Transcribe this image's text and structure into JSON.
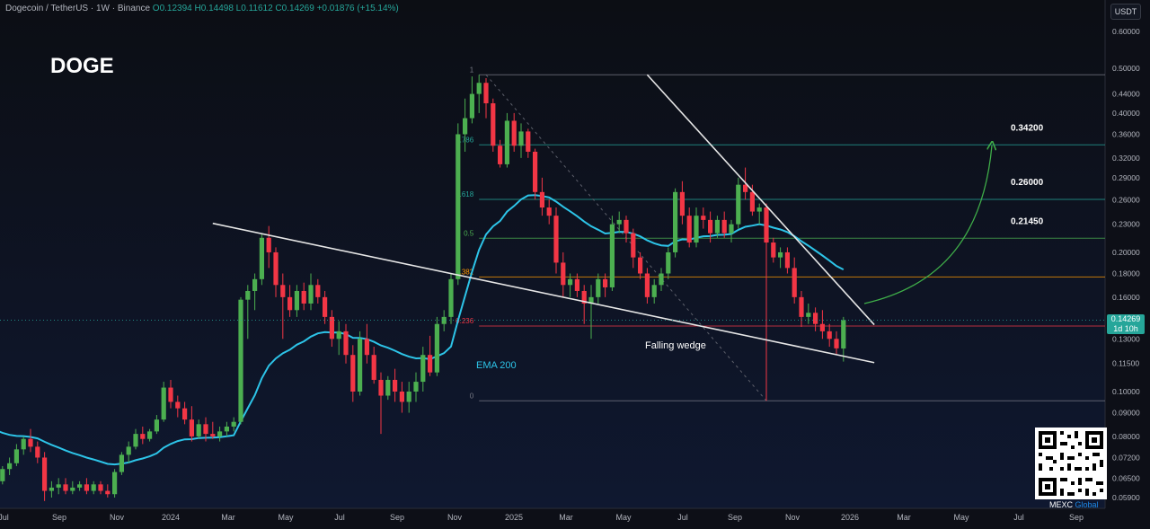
{
  "header": {
    "pair": "Dogecoin / TetherUS · 1W · Binance",
    "open": "O0.12394",
    "high": "H0.14498",
    "low": "L0.11612",
    "close": "C0.14269",
    "change": "+0.01876 (+15.14%)"
  },
  "ticker": "DOGE",
  "unit": "USDT",
  "current_price": {
    "value": "0.14269",
    "countdown": "1d 10h"
  },
  "brand": {
    "name": "MEXC",
    "suffix": "Global"
  },
  "chart_data": {
    "type": "candlestick",
    "y_axis": {
      "scale": "log",
      "ticks": [
        "0.60000",
        "0.50000",
        "0.44000",
        "0.40000",
        "0.36000",
        "0.32000",
        "0.29000",
        "0.26000",
        "0.23000",
        "0.20000",
        "0.18000",
        "0.16000",
        "0.14269",
        "0.13000",
        "0.11500",
        "0.10000",
        "0.09000",
        "0.08000",
        "0.07200",
        "0.06500",
        "0.05900"
      ]
    },
    "x_axis": {
      "ticks": [
        "Jul",
        "Sep",
        "Nov",
        "2024",
        "Mar",
        "May",
        "Jul",
        "Sep",
        "Nov",
        "2025",
        "Mar",
        "May",
        "Jul",
        "Sep",
        "Nov",
        "2026",
        "Mar",
        "May",
        "Jul",
        "Sep"
      ]
    },
    "fib_levels": [
      {
        "label": "1",
        "price": 0.484,
        "color": "#787b86"
      },
      {
        "label": "0.786",
        "price": 0.3415,
        "color": "#26a69a"
      },
      {
        "label": "0.618",
        "price": 0.2603,
        "color": "#26a69a"
      },
      {
        "label": "0.5",
        "price": 0.2145,
        "color": "#4caf50"
      },
      {
        "label": "0.382",
        "price": 0.1769,
        "color": "#ff9800"
      },
      {
        "label": "0.236",
        "price": 0.1386,
        "color": "#f23645"
      },
      {
        "label": "0",
        "price": 0.0955,
        "color": "#787b86"
      }
    ],
    "targets": [
      "0.34200",
      "0.26000",
      "0.21450"
    ],
    "annotations": {
      "wedge": "Falling wedge",
      "ema": "EMA 200"
    },
    "candles": [
      [
        0.063,
        0.066,
        0.061,
        0.064
      ],
      [
        0.064,
        0.069,
        0.063,
        0.068
      ],
      [
        0.068,
        0.072,
        0.066,
        0.07
      ],
      [
        0.07,
        0.077,
        0.069,
        0.075
      ],
      [
        0.075,
        0.08,
        0.073,
        0.079
      ],
      [
        0.079,
        0.083,
        0.074,
        0.076
      ],
      [
        0.076,
        0.078,
        0.07,
        0.072
      ],
      [
        0.072,
        0.074,
        0.058,
        0.061
      ],
      [
        0.061,
        0.064,
        0.059,
        0.062
      ],
      [
        0.062,
        0.065,
        0.06,
        0.063
      ],
      [
        0.063,
        0.065,
        0.06,
        0.061
      ],
      [
        0.061,
        0.064,
        0.06,
        0.062
      ],
      [
        0.062,
        0.064,
        0.061,
        0.063
      ],
      [
        0.063,
        0.065,
        0.06,
        0.061
      ],
      [
        0.061,
        0.064,
        0.06,
        0.063
      ],
      [
        0.063,
        0.064,
        0.06,
        0.061
      ],
      [
        0.061,
        0.063,
        0.059,
        0.06
      ],
      [
        0.06,
        0.068,
        0.059,
        0.067
      ],
      [
        0.067,
        0.074,
        0.066,
        0.073
      ],
      [
        0.073,
        0.078,
        0.07,
        0.076
      ],
      [
        0.076,
        0.083,
        0.075,
        0.081
      ],
      [
        0.081,
        0.084,
        0.077,
        0.079
      ],
      [
        0.079,
        0.083,
        0.078,
        0.082
      ],
      [
        0.082,
        0.089,
        0.081,
        0.087
      ],
      [
        0.087,
        0.105,
        0.086,
        0.102
      ],
      [
        0.102,
        0.106,
        0.092,
        0.095
      ],
      [
        0.095,
        0.098,
        0.088,
        0.092
      ],
      [
        0.092,
        0.095,
        0.085,
        0.087
      ],
      [
        0.087,
        0.093,
        0.078,
        0.08
      ],
      [
        0.08,
        0.087,
        0.079,
        0.085
      ],
      [
        0.085,
        0.088,
        0.078,
        0.081
      ],
      [
        0.081,
        0.086,
        0.079,
        0.08
      ],
      [
        0.08,
        0.084,
        0.078,
        0.082
      ],
      [
        0.082,
        0.086,
        0.08,
        0.084
      ],
      [
        0.084,
        0.088,
        0.082,
        0.086
      ],
      [
        0.086,
        0.16,
        0.085,
        0.158
      ],
      [
        0.158,
        0.17,
        0.13,
        0.165
      ],
      [
        0.165,
        0.18,
        0.15,
        0.175
      ],
      [
        0.175,
        0.22,
        0.17,
        0.215
      ],
      [
        0.215,
        0.228,
        0.185,
        0.2
      ],
      [
        0.2,
        0.205,
        0.16,
        0.17
      ],
      [
        0.17,
        0.18,
        0.13,
        0.16
      ],
      [
        0.16,
        0.17,
        0.145,
        0.15
      ],
      [
        0.15,
        0.17,
        0.145,
        0.165
      ],
      [
        0.165,
        0.172,
        0.15,
        0.155
      ],
      [
        0.155,
        0.18,
        0.15,
        0.17
      ],
      [
        0.17,
        0.175,
        0.155,
        0.16
      ],
      [
        0.16,
        0.165,
        0.14,
        0.145
      ],
      [
        0.145,
        0.15,
        0.125,
        0.13
      ],
      [
        0.13,
        0.142,
        0.12,
        0.135
      ],
      [
        0.135,
        0.14,
        0.115,
        0.12
      ],
      [
        0.12,
        0.126,
        0.095,
        0.1
      ],
      [
        0.1,
        0.135,
        0.098,
        0.13
      ],
      [
        0.13,
        0.14,
        0.115,
        0.12
      ],
      [
        0.12,
        0.125,
        0.104,
        0.106
      ],
      [
        0.106,
        0.11,
        0.081,
        0.098
      ],
      [
        0.098,
        0.108,
        0.096,
        0.106
      ],
      [
        0.106,
        0.112,
        0.095,
        0.1
      ],
      [
        0.1,
        0.105,
        0.09,
        0.095
      ],
      [
        0.095,
        0.105,
        0.09,
        0.1
      ],
      [
        0.1,
        0.11,
        0.095,
        0.105
      ],
      [
        0.105,
        0.125,
        0.1,
        0.12
      ],
      [
        0.12,
        0.132,
        0.108,
        0.11
      ],
      [
        0.11,
        0.145,
        0.108,
        0.14
      ],
      [
        0.14,
        0.15,
        0.135,
        0.145
      ],
      [
        0.145,
        0.18,
        0.14,
        0.175
      ],
      [
        0.175,
        0.38,
        0.17,
        0.36
      ],
      [
        0.36,
        0.43,
        0.33,
        0.39
      ],
      [
        0.39,
        0.48,
        0.38,
        0.44
      ],
      [
        0.44,
        0.484,
        0.4,
        0.465
      ],
      [
        0.465,
        0.476,
        0.39,
        0.42
      ],
      [
        0.42,
        0.43,
        0.33,
        0.34
      ],
      [
        0.34,
        0.35,
        0.305,
        0.31
      ],
      [
        0.31,
        0.4,
        0.305,
        0.385
      ],
      [
        0.385,
        0.4,
        0.33,
        0.34
      ],
      [
        0.34,
        0.38,
        0.32,
        0.365
      ],
      [
        0.365,
        0.37,
        0.32,
        0.33
      ],
      [
        0.33,
        0.335,
        0.26,
        0.27
      ],
      [
        0.27,
        0.29,
        0.24,
        0.25
      ],
      [
        0.25,
        0.26,
        0.23,
        0.24
      ],
      [
        0.24,
        0.25,
        0.18,
        0.19
      ],
      [
        0.19,
        0.2,
        0.16,
        0.17
      ],
      [
        0.17,
        0.18,
        0.16,
        0.175
      ],
      [
        0.175,
        0.18,
        0.16,
        0.165
      ],
      [
        0.165,
        0.17,
        0.14,
        0.155
      ],
      [
        0.155,
        0.17,
        0.13,
        0.16
      ],
      [
        0.16,
        0.18,
        0.155,
        0.175
      ],
      [
        0.175,
        0.18,
        0.16,
        0.168
      ],
      [
        0.168,
        0.24,
        0.165,
        0.23
      ],
      [
        0.23,
        0.245,
        0.22,
        0.235
      ],
      [
        0.235,
        0.24,
        0.21,
        0.22
      ],
      [
        0.22,
        0.225,
        0.185,
        0.195
      ],
      [
        0.195,
        0.2,
        0.175,
        0.18
      ],
      [
        0.18,
        0.185,
        0.155,
        0.16
      ],
      [
        0.16,
        0.175,
        0.155,
        0.17
      ],
      [
        0.17,
        0.185,
        0.165,
        0.18
      ],
      [
        0.18,
        0.205,
        0.175,
        0.2
      ],
      [
        0.2,
        0.275,
        0.195,
        0.27
      ],
      [
        0.27,
        0.285,
        0.23,
        0.24
      ],
      [
        0.24,
        0.25,
        0.205,
        0.21
      ],
      [
        0.21,
        0.25,
        0.205,
        0.24
      ],
      [
        0.24,
        0.25,
        0.225,
        0.235
      ],
      [
        0.235,
        0.245,
        0.21,
        0.22
      ],
      [
        0.22,
        0.24,
        0.215,
        0.235
      ],
      [
        0.235,
        0.245,
        0.215,
        0.22
      ],
      [
        0.22,
        0.235,
        0.21,
        0.23
      ],
      [
        0.23,
        0.29,
        0.225,
        0.28
      ],
      [
        0.28,
        0.305,
        0.26,
        0.27
      ],
      [
        0.27,
        0.28,
        0.24,
        0.245
      ],
      [
        0.245,
        0.255,
        0.23,
        0.25
      ],
      [
        0.25,
        0.255,
        0.0955,
        0.21
      ],
      [
        0.21,
        0.215,
        0.19,
        0.195
      ],
      [
        0.195,
        0.205,
        0.185,
        0.2
      ],
      [
        0.2,
        0.205,
        0.18,
        0.185
      ],
      [
        0.185,
        0.195,
        0.155,
        0.16
      ],
      [
        0.16,
        0.165,
        0.138,
        0.145
      ],
      [
        0.145,
        0.155,
        0.14,
        0.148
      ],
      [
        0.148,
        0.152,
        0.135,
        0.14
      ],
      [
        0.14,
        0.15,
        0.13,
        0.135
      ],
      [
        0.135,
        0.14,
        0.125,
        0.13
      ],
      [
        0.13,
        0.135,
        0.12,
        0.124
      ],
      [
        0.1239,
        0.145,
        0.1161,
        0.1427
      ]
    ]
  }
}
